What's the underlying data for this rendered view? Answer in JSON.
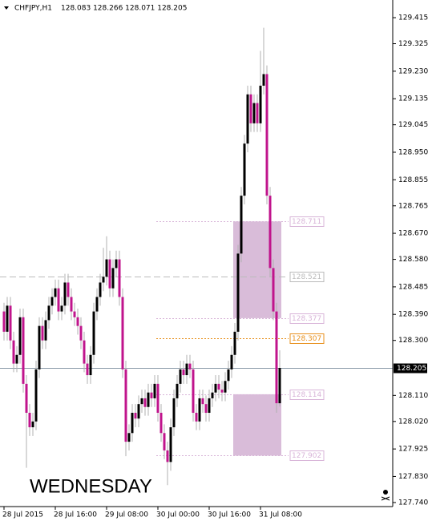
{
  "chart_data": {
    "type": "candlestick",
    "title": "CHFJPY,H1",
    "header_values": "128.083 128.266 128.071 128.205",
    "annotation": "WEDNESDAY",
    "bull_color": "#000000",
    "bear_color": "#c0148c",
    "categories": [
      "28 Jul 2015",
      null,
      null,
      null,
      null,
      null,
      null,
      null,
      null,
      null,
      null,
      null,
      null,
      null,
      null,
      null,
      "28 Jul 16:00",
      null,
      null,
      null,
      null,
      null,
      null,
      null,
      null,
      null,
      null,
      null,
      null,
      null,
      null,
      null,
      "29 Jul 08:00",
      null,
      null,
      null,
      null,
      null,
      null,
      null,
      null,
      null,
      null,
      null,
      null,
      null,
      null,
      null,
      "30 Jul 00:00",
      null,
      null,
      null,
      null,
      null,
      null,
      null,
      null,
      null,
      null,
      null,
      null,
      null,
      null,
      null,
      "30 Jul 16:00",
      null,
      null,
      null,
      null,
      null,
      null,
      null,
      null,
      null,
      null,
      null,
      null,
      null,
      null,
      null,
      "31 Jul 08:00",
      null,
      null,
      null,
      null,
      null,
      null
    ],
    "open": [
      128.4,
      128.33,
      128.42,
      128.3,
      128.22,
      128.25,
      128.38,
      128.15,
      128.05,
      128.0,
      128.02,
      128.2,
      128.35,
      128.3,
      128.37,
      128.42,
      128.45,
      128.48,
      128.4,
      128.42,
      128.5,
      128.45,
      128.4,
      128.38,
      128.35,
      128.3,
      128.22,
      128.18,
      128.25,
      128.4,
      128.45,
      128.5,
      128.52,
      128.58,
      128.48,
      128.55,
      128.58,
      128.45,
      128.2,
      127.95,
      127.98,
      128.05,
      128.03,
      128.08,
      128.1,
      128.07,
      128.12,
      128.1,
      128.15,
      128.05,
      127.98,
      127.92,
      127.88,
      128.0,
      128.1,
      128.15,
      128.2,
      128.18,
      128.22,
      128.2,
      128.05,
      128.02,
      128.1,
      128.08,
      128.05,
      128.1,
      128.12,
      128.15,
      128.13,
      128.12,
      128.16,
      128.2,
      128.25,
      128.33,
      128.6,
      128.8,
      128.98,
      129.15,
      129.05,
      129.12,
      129.05,
      129.18,
      129.22,
      128.8,
      128.55,
      128.4,
      128.083
    ],
    "high": [
      128.43,
      128.45,
      128.45,
      128.33,
      128.28,
      128.41,
      128.41,
      128.18,
      128.08,
      128.05,
      128.23,
      128.38,
      128.38,
      128.4,
      128.45,
      128.48,
      128.51,
      128.51,
      128.45,
      128.53,
      128.53,
      128.48,
      128.43,
      128.41,
      128.38,
      128.33,
      128.25,
      128.28,
      128.43,
      128.48,
      128.53,
      128.62,
      128.66,
      128.61,
      128.58,
      128.61,
      128.61,
      128.48,
      128.23,
      128.01,
      128.08,
      128.08,
      128.11,
      128.13,
      128.13,
      128.15,
      128.15,
      128.18,
      128.18,
      128.08,
      128.01,
      127.95,
      128.03,
      128.13,
      128.18,
      128.23,
      128.23,
      128.25,
      128.25,
      128.23,
      128.08,
      128.13,
      128.13,
      128.11,
      128.13,
      128.15,
      128.18,
      128.18,
      128.16,
      128.19,
      128.23,
      128.28,
      128.36,
      128.63,
      128.83,
      129.01,
      129.18,
      129.18,
      129.15,
      129.15,
      129.3,
      129.38,
      129.25,
      128.83,
      128.58,
      128.43,
      128.266
    ],
    "low": [
      128.3,
      128.3,
      128.27,
      128.19,
      128.19,
      128.22,
      128.12,
      127.86,
      127.97,
      127.97,
      127.99,
      128.17,
      128.27,
      128.27,
      128.34,
      128.39,
      128.42,
      128.37,
      128.37,
      128.39,
      128.42,
      128.37,
      128.35,
      128.32,
      128.27,
      128.19,
      128.15,
      128.15,
      128.22,
      128.37,
      128.42,
      128.47,
      128.49,
      128.45,
      128.45,
      128.52,
      128.42,
      128.17,
      127.9,
      127.92,
      127.95,
      128.0,
      128.0,
      128.05,
      128.04,
      128.04,
      128.07,
      128.07,
      128.02,
      127.95,
      127.89,
      127.8,
      127.85,
      127.97,
      128.07,
      128.12,
      128.15,
      128.15,
      128.17,
      128.02,
      127.99,
      127.99,
      128.05,
      128.02,
      128.02,
      128.07,
      128.09,
      128.1,
      128.09,
      128.09,
      128.13,
      128.17,
      128.22,
      128.3,
      128.57,
      128.77,
      128.95,
      129.02,
      129.02,
      129.02,
      129.02,
      129.15,
      128.77,
      128.52,
      128.37,
      128.05,
      128.071
    ],
    "close": [
      128.33,
      128.42,
      128.3,
      128.22,
      128.25,
      128.38,
      128.15,
      128.05,
      128.0,
      128.02,
      128.2,
      128.35,
      128.3,
      128.37,
      128.42,
      128.45,
      128.48,
      128.4,
      128.42,
      128.5,
      128.45,
      128.4,
      128.38,
      128.35,
      128.3,
      128.22,
      128.18,
      128.25,
      128.4,
      128.45,
      128.5,
      128.52,
      128.58,
      128.48,
      128.55,
      128.58,
      128.45,
      128.2,
      127.95,
      127.98,
      128.05,
      128.03,
      128.08,
      128.1,
      128.07,
      128.12,
      128.1,
      128.15,
      128.05,
      127.98,
      127.92,
      127.88,
      128.0,
      128.1,
      128.15,
      128.2,
      128.18,
      128.22,
      128.2,
      128.05,
      128.02,
      128.1,
      128.08,
      128.05,
      128.1,
      128.12,
      128.15,
      128.13,
      128.12,
      128.16,
      128.2,
      128.25,
      128.33,
      128.6,
      128.8,
      128.98,
      129.15,
      129.05,
      129.12,
      129.05,
      129.18,
      129.22,
      128.8,
      128.55,
      128.4,
      128.083,
      128.205
    ],
    "current_price": 128.205,
    "levels": [
      {
        "value": 128.711,
        "color": "#d8b4d8",
        "style": "dotted"
      },
      {
        "value": 128.521,
        "color": "#bbbbbb",
        "style": "dashed"
      },
      {
        "value": 128.377,
        "color": "#d8b4d8",
        "style": "dotted"
      },
      {
        "value": 128.307,
        "color": "#e8901c",
        "style": "dotted"
      },
      {
        "value": 128.114,
        "color": "#d8b4d8",
        "style": "dotted"
      },
      {
        "value": 127.902,
        "color": "#d8b4d8",
        "style": "dotted"
      }
    ],
    "zones": [
      {
        "from": 128.377,
        "to": 128.711,
        "color": "#d9bcd9"
      },
      {
        "from": 127.902,
        "to": 128.114,
        "color": "#d9bcd9"
      }
    ],
    "ylim": [
      127.726,
      129.476
    ],
    "yticks": [
      129.415,
      129.325,
      {
        "value": 129.23,
        "label": "129.230"
      },
      129.135,
      129.045,
      {
        "value": 128.95,
        "label": "128.950"
      },
      128.855,
      128.765,
      {
        "value": 128.67,
        "label": "128.670"
      },
      {
        "value": 128.58,
        "label": "128.580"
      },
      128.485,
      {
        "value": 128.39,
        "label": "128.390"
      },
      {
        "value": 128.3,
        "label": "128.300"
      },
      {
        "value": 128.11,
        "label": "128.110"
      },
      {
        "value": 128.02,
        "label": "128.020"
      },
      127.925,
      {
        "value": 127.83,
        "label": "127.830"
      },
      {
        "value": 127.74,
        "label": "127.740"
      }
    ]
  }
}
